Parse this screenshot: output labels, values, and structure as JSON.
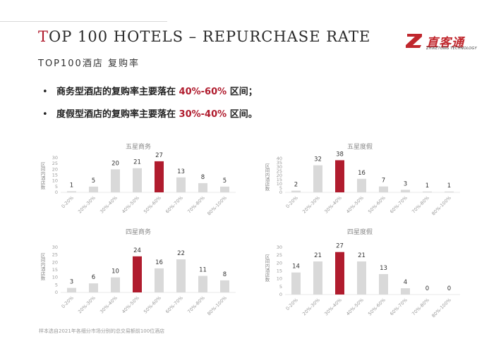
{
  "header": {
    "title_first_letter": "T",
    "title_rest": "OP 100 HOTELS – REPURCHASE RATE",
    "subtitle": "TOP100酒店 复购率"
  },
  "logo": {
    "name_cn": "直客通",
    "name_en": "ZHIKETONG TECHNOLOGY",
    "icon": "z-logo-icon",
    "color": "#c0272d"
  },
  "bullets": [
    {
      "pre": "商务型酒店的复购率主要落在 ",
      "highlight": "40%-60%",
      "post": " 区间；"
    },
    {
      "pre": "度假型酒店的复购率主要落在 ",
      "highlight": "30%-40%",
      "post": " 区间。"
    }
  ],
  "colors": {
    "accent": "#b01c2e",
    "bar": "#d9d9d9"
  },
  "chart_data": [
    {
      "type": "bar",
      "title": "五星商务",
      "ylabel": "区间内酒店数",
      "categories": [
        "0-20%",
        "20%-30%",
        "30%-40%",
        "40%-50%",
        "50%-60%",
        "60%-70%",
        "70%-80%",
        "80%-100%"
      ],
      "values": [
        1,
        5,
        20,
        21,
        27,
        13,
        8,
        5
      ],
      "highlight_index": 4,
      "ylim": [
        0,
        30
      ],
      "yticks": [
        0,
        5,
        10,
        15,
        20,
        25,
        30
      ]
    },
    {
      "type": "bar",
      "title": "五星度假",
      "ylabel": "区间内酒店数",
      "categories": [
        "0-20%",
        "20%-30%",
        "30%-40%",
        "40%-50%",
        "50%-60%",
        "60%-70%",
        "70%-80%",
        "80%-100%"
      ],
      "values": [
        2,
        32,
        38,
        16,
        7,
        3,
        1,
        1
      ],
      "highlight_index": 2,
      "ylim": [
        0,
        40
      ],
      "yticks": [
        0,
        5,
        10,
        15,
        20,
        25,
        30,
        35,
        40
      ]
    },
    {
      "type": "bar",
      "title": "四星商务",
      "ylabel": "区间内酒店数",
      "categories": [
        "0-20%",
        "20%-30%",
        "30%-40%",
        "40%-50%",
        "50%-60%",
        "60%-70%",
        "70%-80%",
        "80%-100%"
      ],
      "values": [
        3,
        6,
        10,
        24,
        16,
        22,
        11,
        8
      ],
      "highlight_index": 3,
      "ylim": [
        0,
        30
      ],
      "yticks": [
        0,
        5,
        10,
        15,
        20,
        25,
        30
      ]
    },
    {
      "type": "bar",
      "title": "四星度假",
      "ylabel": "区间内酒店数",
      "categories": [
        "0-20%",
        "20%-30%",
        "30%-40%",
        "40%-50%",
        "50%-60%",
        "60%-70%",
        "70%-80%",
        "80%-100%"
      ],
      "values": [
        14,
        21,
        27,
        21,
        13,
        4,
        0,
        0
      ],
      "highlight_index": 2,
      "ylim": [
        0,
        30
      ],
      "yticks": [
        0,
        5,
        10,
        15,
        20,
        25,
        30
      ]
    }
  ],
  "footnote": "样本选自2021年各细分市场分别的总交易额前100位酒店"
}
